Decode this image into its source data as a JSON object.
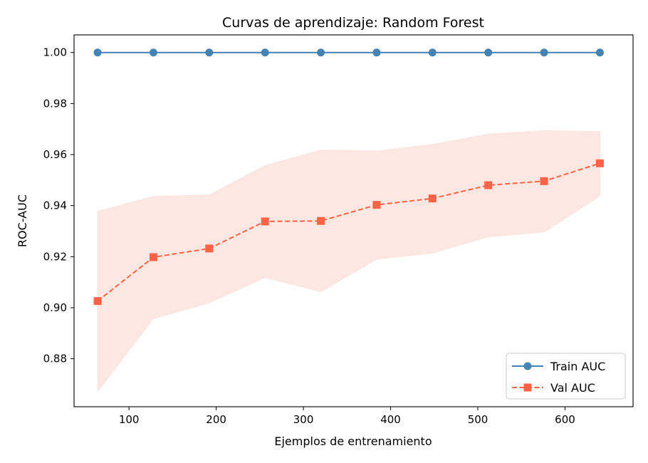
{
  "chart_data": {
    "type": "line",
    "title": "Curvas de aprendizaje: Random Forest",
    "xlabel": "Ejemplos de entrenamiento",
    "ylabel": "ROC-AUC",
    "xlim": [
      37,
      678
    ],
    "ylim": [
      0.8612,
      1.0069
    ],
    "x_ticks": [
      100,
      200,
      300,
      400,
      500,
      600
    ],
    "y_ticks": [
      0.88,
      0.9,
      0.92,
      0.94,
      0.96,
      0.98,
      1.0
    ],
    "x": [
      64,
      128,
      192,
      256,
      320,
      384,
      448,
      512,
      576,
      640
    ],
    "series": [
      {
        "name": "Train AUC",
        "color": "#4682b4",
        "line_style": "solid",
        "marker": "circle",
        "values": [
          1.0,
          1.0,
          1.0,
          1.0,
          1.0,
          1.0,
          1.0,
          1.0,
          1.0,
          1.0
        ]
      },
      {
        "name": "Val AUC",
        "color": "#ff6347",
        "line_style": "dashed",
        "marker": "square",
        "values": [
          0.9026,
          0.9198,
          0.9232,
          0.9338,
          0.934,
          0.9403,
          0.9428,
          0.948,
          0.9496,
          0.9566
        ],
        "band_upper": [
          0.9378,
          0.9436,
          0.9442,
          0.9557,
          0.9618,
          0.9614,
          0.964,
          0.968,
          0.9694,
          0.969
        ],
        "band_lower": [
          0.8672,
          0.8957,
          0.9019,
          0.9118,
          0.9063,
          0.919,
          0.9214,
          0.9278,
          0.9296,
          0.9438
        ],
        "band_color": "#fde4df"
      }
    ],
    "legend_position": "bottom-right",
    "grid": false
  }
}
